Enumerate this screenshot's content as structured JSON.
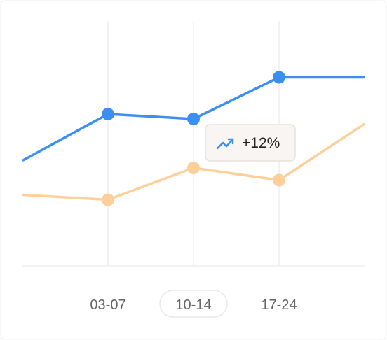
{
  "chart_data": {
    "type": "line",
    "categories": [
      null,
      "03-07",
      "10-14",
      "17-24",
      null
    ],
    "series": [
      {
        "color": "#3b8ff0",
        "values": [
          43,
          62,
          60,
          77,
          77
        ]
      },
      {
        "color": "#fdd09b",
        "values": [
          29,
          27,
          40,
          35,
          58
        ]
      }
    ],
    "ylim": [
      0,
      100
    ],
    "selected_index": 2,
    "annotation": "+12%"
  }
}
